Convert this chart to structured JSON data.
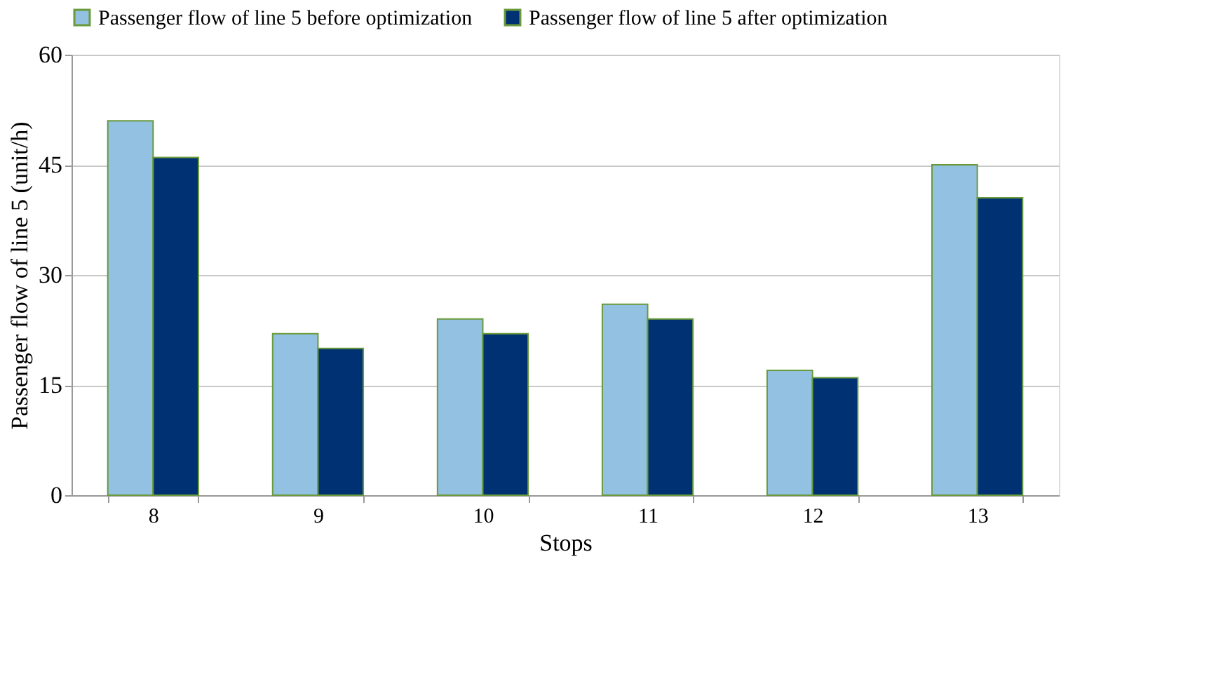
{
  "chart_data": {
    "type": "bar",
    "xlabel": "Stops",
    "ylabel": "Passenger flow of line  5 (unit/h)",
    "categories": [
      "8",
      "9",
      "10",
      "11",
      "12",
      "13"
    ],
    "series": [
      {
        "name": "Passenger flow of line 5 before optimization",
        "color": "#92c1e1",
        "values": [
          51,
          22,
          24,
          26,
          17,
          45
        ]
      },
      {
        "name": "Passenger flow of line 5 after optimization",
        "color": "#003173",
        "values": [
          46,
          20,
          22,
          24,
          16,
          40.5
        ]
      }
    ],
    "ylim": [
      0,
      60
    ],
    "yticks": [
      0,
      15,
      30,
      45,
      60
    ],
    "grid": "y",
    "legend": "top"
  }
}
